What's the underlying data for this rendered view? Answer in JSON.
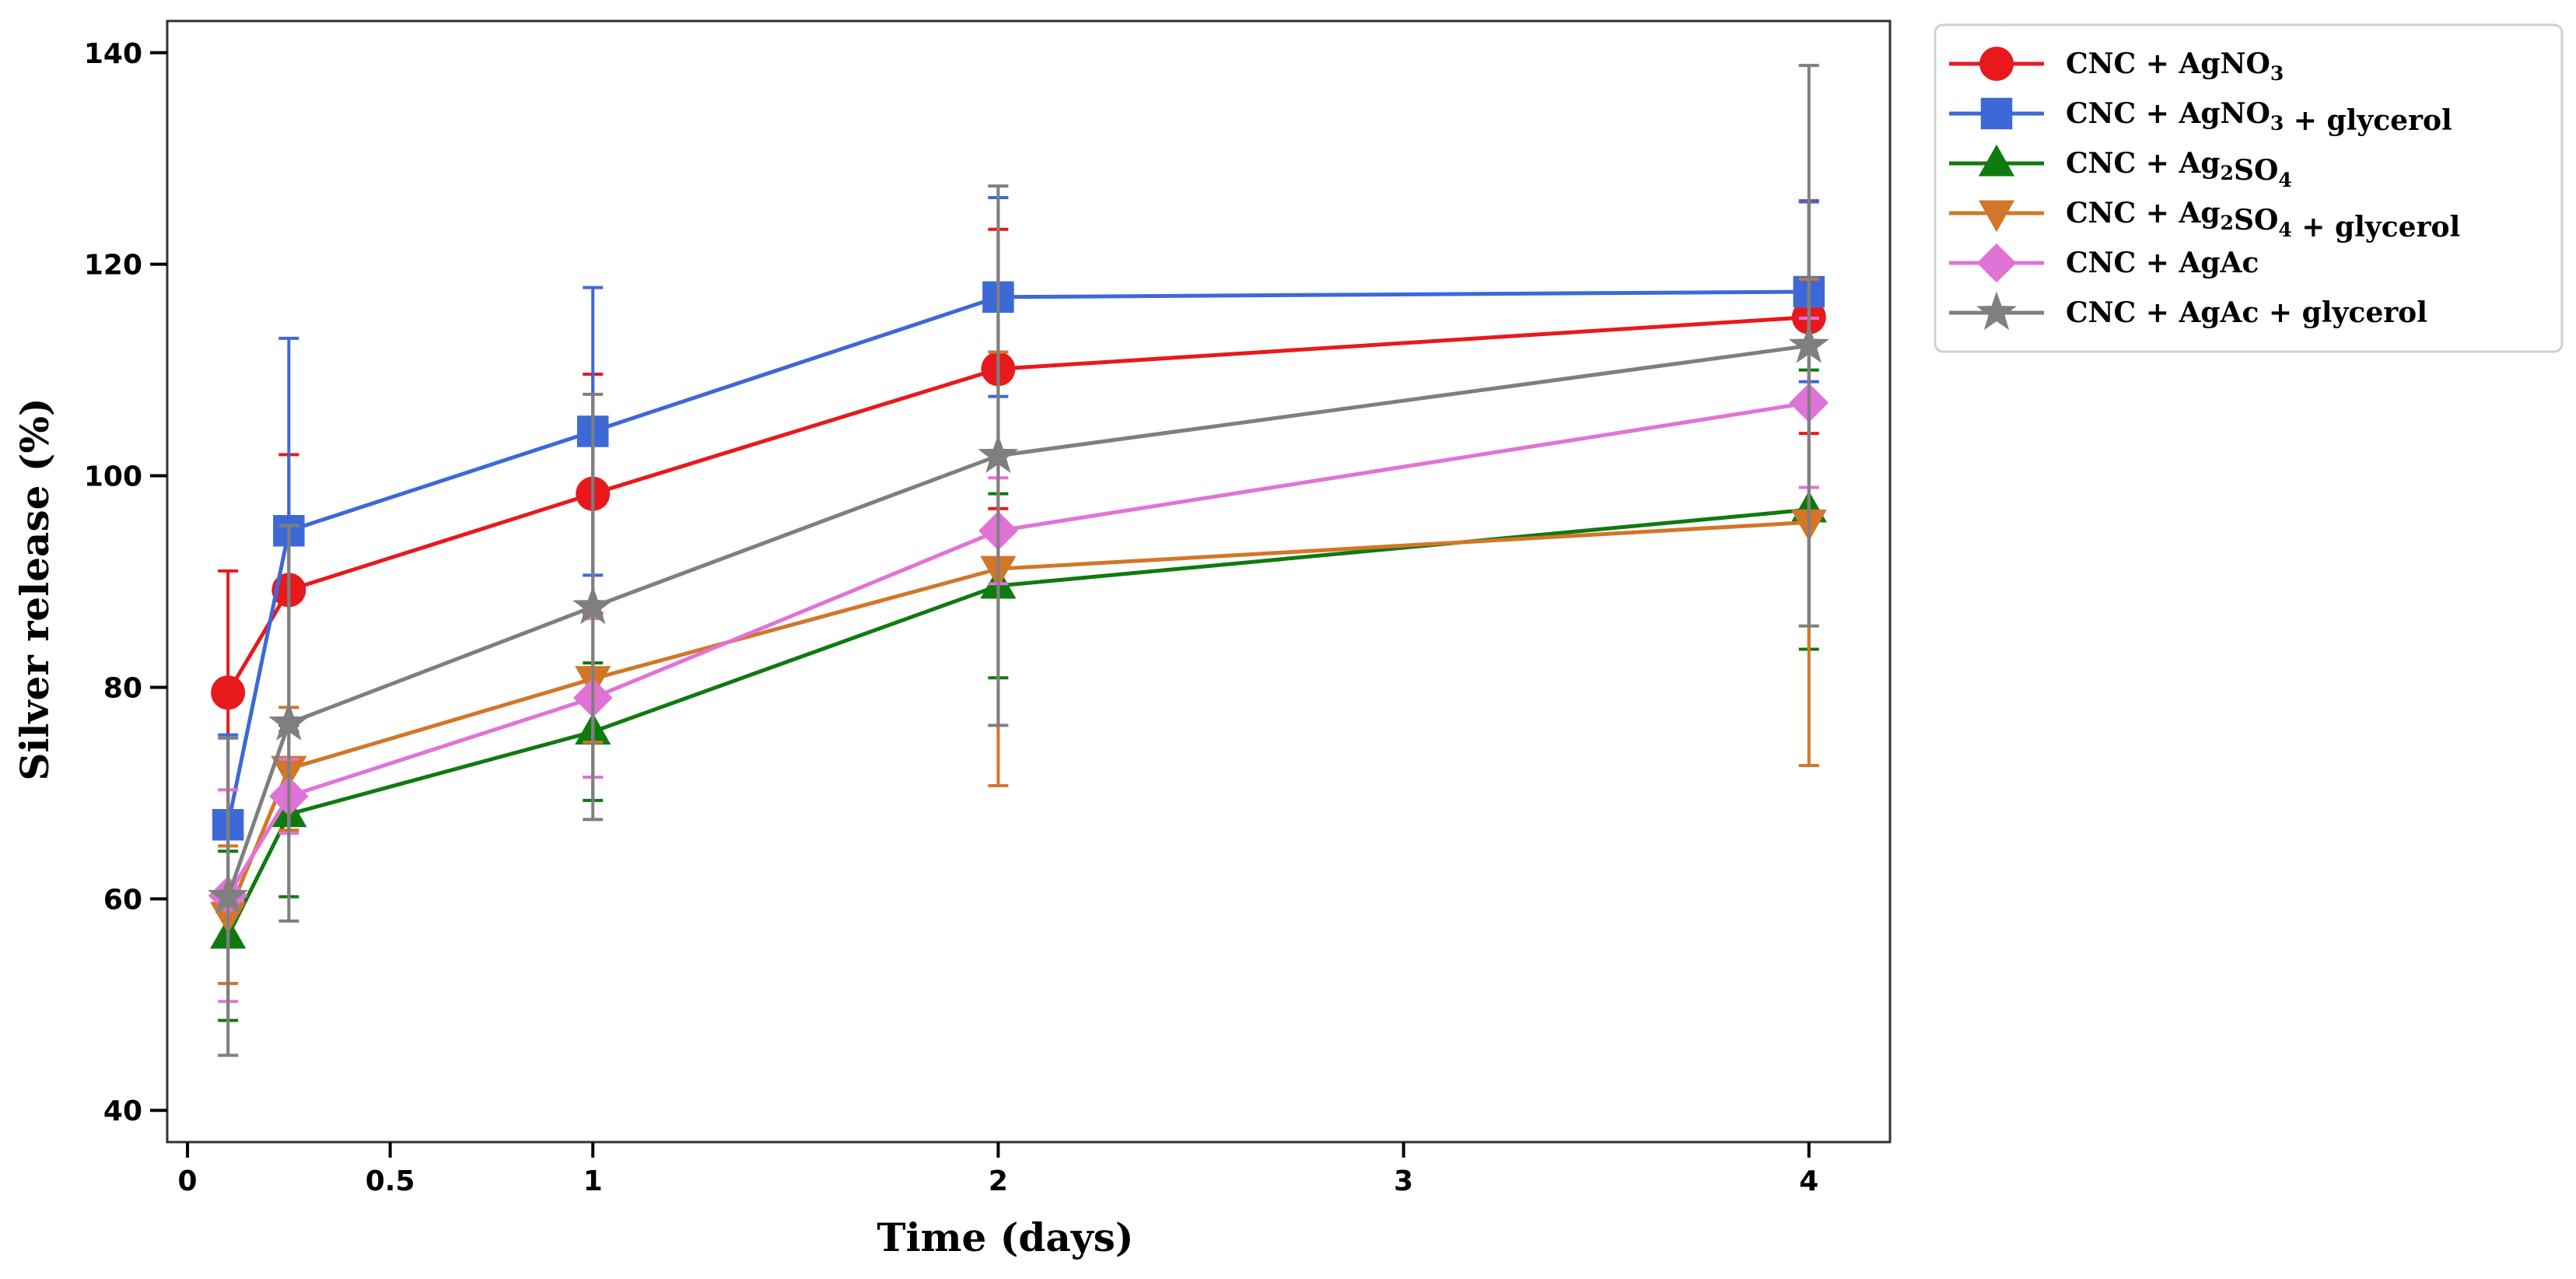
{
  "chart_data": {
    "type": "line",
    "title": "",
    "xlabel": "Time (days)",
    "ylabel": "Silver release (%)",
    "xlim": [
      -0.05,
      4.2
    ],
    "ylim": [
      37,
      143
    ],
    "x_ticks": [
      0,
      0.5,
      1,
      2,
      3,
      4
    ],
    "x_tick_labels": [
      "0",
      "0.5",
      "1",
      "2",
      "3",
      "4"
    ],
    "y_ticks": [
      40,
      60,
      80,
      100,
      120,
      140
    ],
    "y_tick_labels": [
      "40",
      "60",
      "80",
      "100",
      "120",
      "140"
    ],
    "grid": false,
    "legend_position": "outside-top-right",
    "x": [
      0.1,
      0.25,
      1,
      2,
      4
    ],
    "series": [
      {
        "name": "CNC + AgNO3",
        "legend_parts": [
          {
            "t": "CNC + AgNO"
          },
          {
            "t": "3",
            "sub": true
          }
        ],
        "color": "#e8191d",
        "marker": "circle",
        "values": [
          79.5,
          89.2,
          98.3,
          110.1,
          115.0
        ],
        "errors": [
          11.5,
          12.8,
          11.3,
          13.2,
          11.0
        ]
      },
      {
        "name": "CNC + AgNO3 + glycerol",
        "legend_parts": [
          {
            "t": "CNC + AgNO"
          },
          {
            "t": "3",
            "sub": true
          },
          {
            "t": " + glycerol"
          }
        ],
        "color": "#3d69d6",
        "marker": "square",
        "values": [
          67.0,
          94.8,
          104.2,
          116.9,
          117.4
        ],
        "errors": [
          8.5,
          18.2,
          13.6,
          9.4,
          8.5
        ]
      },
      {
        "name": "CNC + Ag2SO4",
        "legend_parts": [
          {
            "t": "CNC + Ag"
          },
          {
            "t": "2",
            "sub": true
          },
          {
            "t": "SO"
          },
          {
            "t": "4",
            "sub": true
          }
        ],
        "color": "#0f7a0f",
        "marker": "triangle-up",
        "values": [
          56.5,
          68.0,
          75.8,
          89.6,
          96.8
        ],
        "errors": [
          8.0,
          7.8,
          6.5,
          8.7,
          13.2
        ]
      },
      {
        "name": "CNC + Ag2SO4 + glycerol",
        "legend_parts": [
          {
            "t": "CNC + Ag"
          },
          {
            "t": "2",
            "sub": true
          },
          {
            "t": "SO"
          },
          {
            "t": "4",
            "sub": true
          },
          {
            "t": " + glycerol"
          }
        ],
        "color": "#d27628",
        "marker": "triangle-down",
        "values": [
          58.5,
          72.3,
          80.8,
          91.2,
          95.6
        ],
        "errors": [
          6.5,
          5.8,
          6.0,
          20.5,
          23.0
        ]
      },
      {
        "name": "CNC + AgAc",
        "legend_parts": [
          {
            "t": "CNC + AgAc"
          }
        ],
        "color": "#e073d6",
        "marker": "diamond",
        "values": [
          60.3,
          69.7,
          79.0,
          94.8,
          106.9
        ],
        "errors": [
          10.0,
          3.5,
          7.5,
          5.0,
          8.0
        ]
      },
      {
        "name": "CNC + AgAc + glycerol",
        "legend_parts": [
          {
            "t": "CNC + AgAc + glycerol"
          }
        ],
        "color": "#7f7f7f",
        "marker": "star",
        "values": [
          60.2,
          76.6,
          87.6,
          101.9,
          112.3
        ],
        "errors": [
          15.0,
          18.7,
          20.1,
          25.5,
          26.5
        ]
      }
    ]
  }
}
